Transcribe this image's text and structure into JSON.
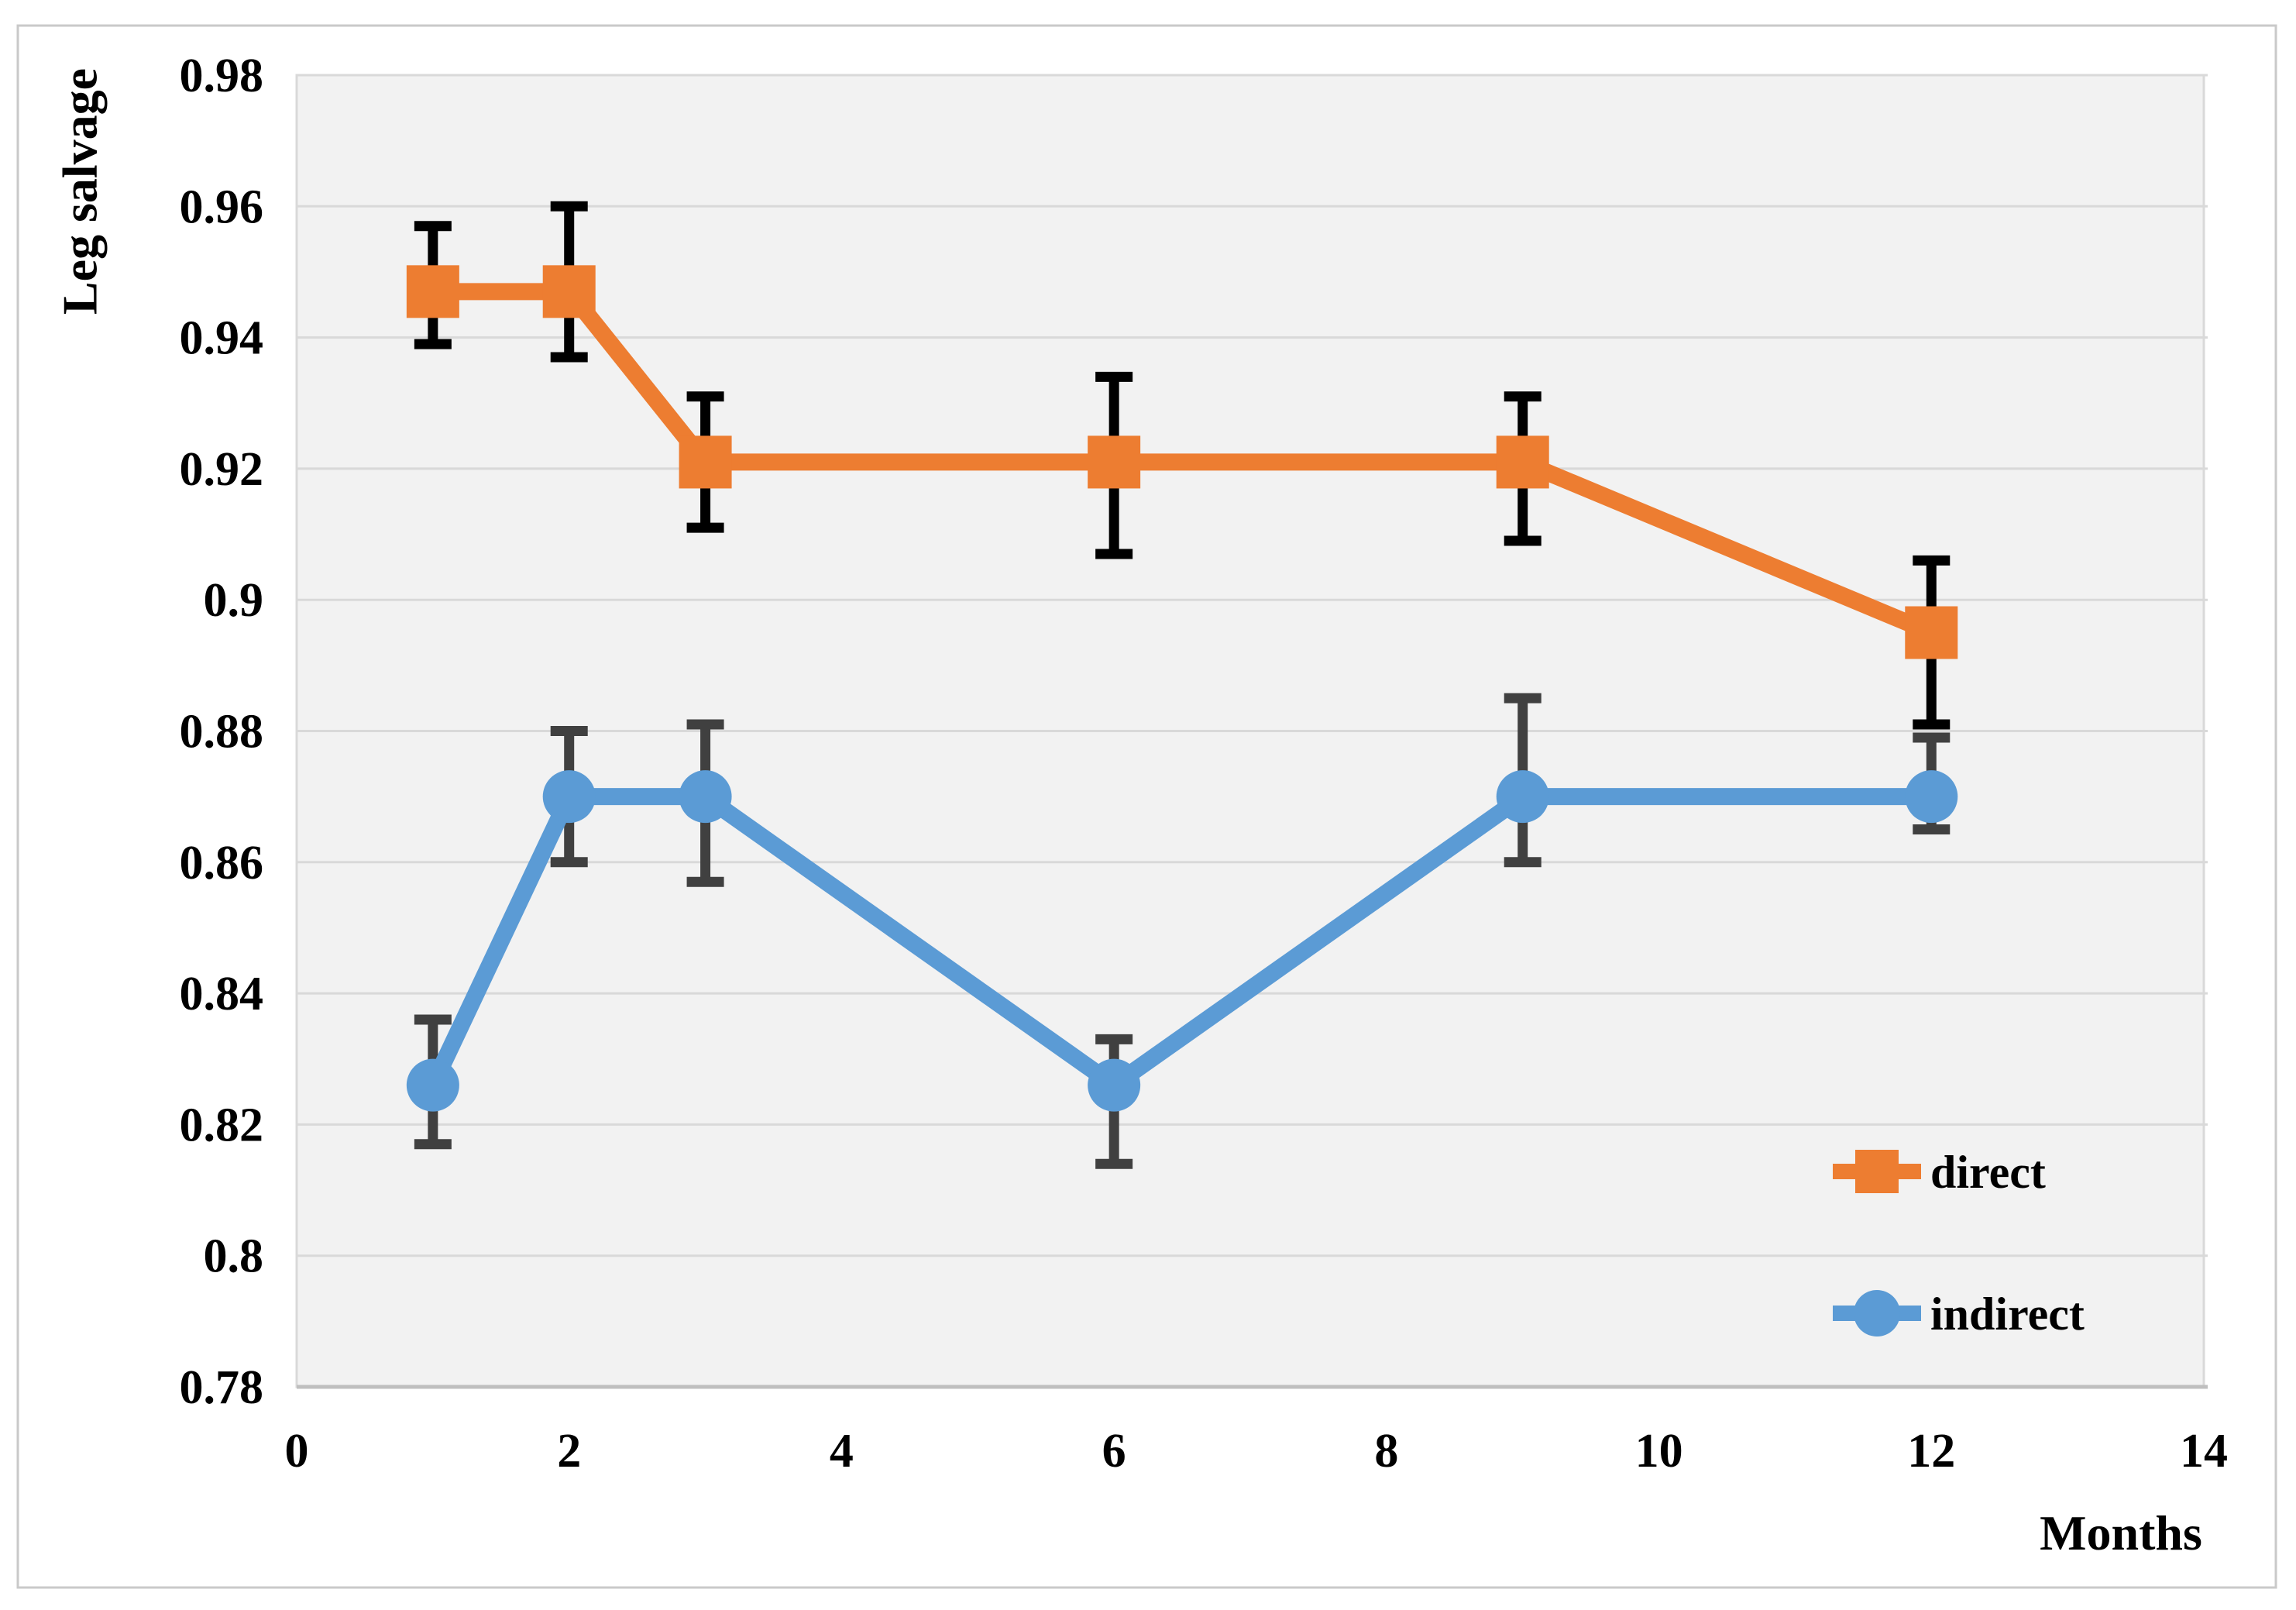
{
  "figure": {
    "y_axis_title": "Leg salvage",
    "x_axis_title": "Months",
    "background_color": "#FFFFFF",
    "plot_background_color": "#F2F2F2",
    "gridline_color": "#D9D9D9",
    "plot_border_color": "#BFBFBF",
    "figure_border_color": "#C9C9C9",
    "text_color": "#000000"
  },
  "chart_data": {
    "type": "line",
    "title": "",
    "xlabel": "Months",
    "ylabel": "Leg salvage",
    "xlim": [
      0,
      14
    ],
    "ylim": [
      0.78,
      0.98
    ],
    "x_ticks": [
      "0",
      "2",
      "4",
      "6",
      "8",
      "10",
      "12",
      "14"
    ],
    "y_ticks": [
      "0.98",
      "0.96",
      "0.94",
      "0.92",
      "0.9",
      "0.88",
      "0.86",
      "0.84",
      "0.82",
      "0.8",
      "0.78"
    ],
    "grid": "horizontal-only",
    "legend_position": "inside-bottom-right",
    "x": [
      1,
      2,
      3,
      6,
      9,
      12
    ],
    "series": [
      {
        "name": "direct",
        "marker": "square",
        "color": "#ED7D31",
        "error_bar_color": "#000000",
        "values": [
          0.947,
          0.947,
          0.921,
          0.921,
          0.921,
          0.895
        ],
        "error_upper": [
          0.957,
          0.96,
          0.931,
          0.934,
          0.931,
          0.906
        ],
        "error_lower": [
          0.939,
          0.937,
          0.911,
          0.907,
          0.909,
          0.881
        ]
      },
      {
        "name": "indirect",
        "marker": "circle",
        "color": "#5B9BD5",
        "error_bar_color": "#404040",
        "values": [
          0.826,
          0.87,
          0.87,
          0.826,
          0.87,
          0.87
        ],
        "error_upper": [
          0.836,
          0.88,
          0.881,
          0.833,
          0.885,
          0.879
        ],
        "error_lower": [
          0.817,
          0.86,
          0.857,
          0.814,
          0.86,
          0.865
        ]
      }
    ]
  }
}
